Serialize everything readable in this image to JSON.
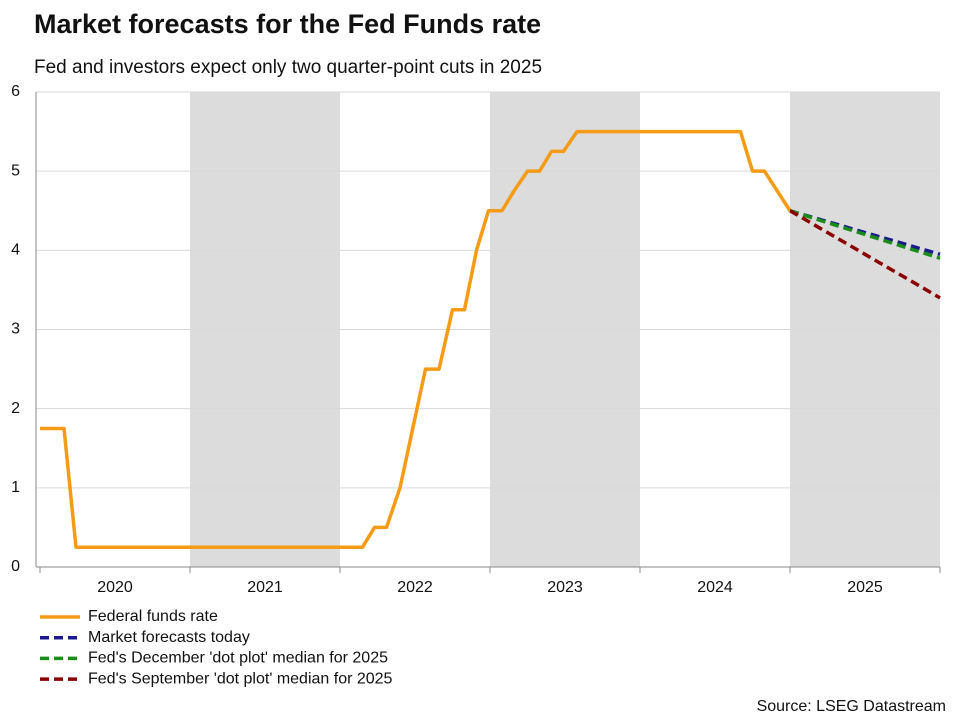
{
  "chart_data": {
    "type": "line",
    "title": "Market forecasts for the Fed Funds rate",
    "subtitle": "Fed and investors expect only two quarter-point cuts in 2025",
    "source": "Source: LSEG Datastream",
    "categories": [
      "2020",
      "2021",
      "2022",
      "2023",
      "2024",
      "2025"
    ],
    "xlim": [
      2020,
      2026
    ],
    "ylim": [
      0,
      6
    ],
    "yticks": [
      0,
      1,
      2,
      3,
      4,
      5,
      6
    ],
    "grid": true,
    "series": [
      {
        "name": "Federal funds rate",
        "color": "#f59b15",
        "dashed": false,
        "x": [
          2020.0,
          2020.16,
          2020.24,
          2022.15,
          2022.23,
          2022.31,
          2022.4,
          2022.57,
          2022.66,
          2022.75,
          2022.83,
          2022.91,
          2022.99,
          2023.08,
          2023.16,
          2023.25,
          2023.33,
          2023.41,
          2023.49,
          2023.58,
          2024.67,
          2024.75,
          2024.83,
          2025.0
        ],
        "values": [
          1.75,
          1.75,
          0.25,
          0.25,
          0.5,
          0.5,
          1.0,
          2.5,
          2.5,
          3.25,
          3.25,
          4.0,
          4.5,
          4.5,
          4.75,
          5.0,
          5.0,
          5.25,
          5.25,
          5.5,
          5.5,
          5.0,
          5.0,
          4.5
        ]
      },
      {
        "name": "Market forecasts today",
        "color": "#1a1a8c",
        "dashed": true,
        "x": [
          2025.0,
          2026.0
        ],
        "values": [
          4.5,
          3.95
        ]
      },
      {
        "name": "Fed's December 'dot plot' median for 2025",
        "color": "#1a8c1a",
        "dashed": true,
        "x": [
          2025.0,
          2026.0
        ],
        "values": [
          4.5,
          3.9
        ]
      },
      {
        "name": "Fed's September 'dot plot' median for 2025",
        "color": "#8b0000",
        "dashed": true,
        "x": [
          2025.0,
          2026.0
        ],
        "values": [
          4.5,
          3.4
        ]
      }
    ]
  }
}
